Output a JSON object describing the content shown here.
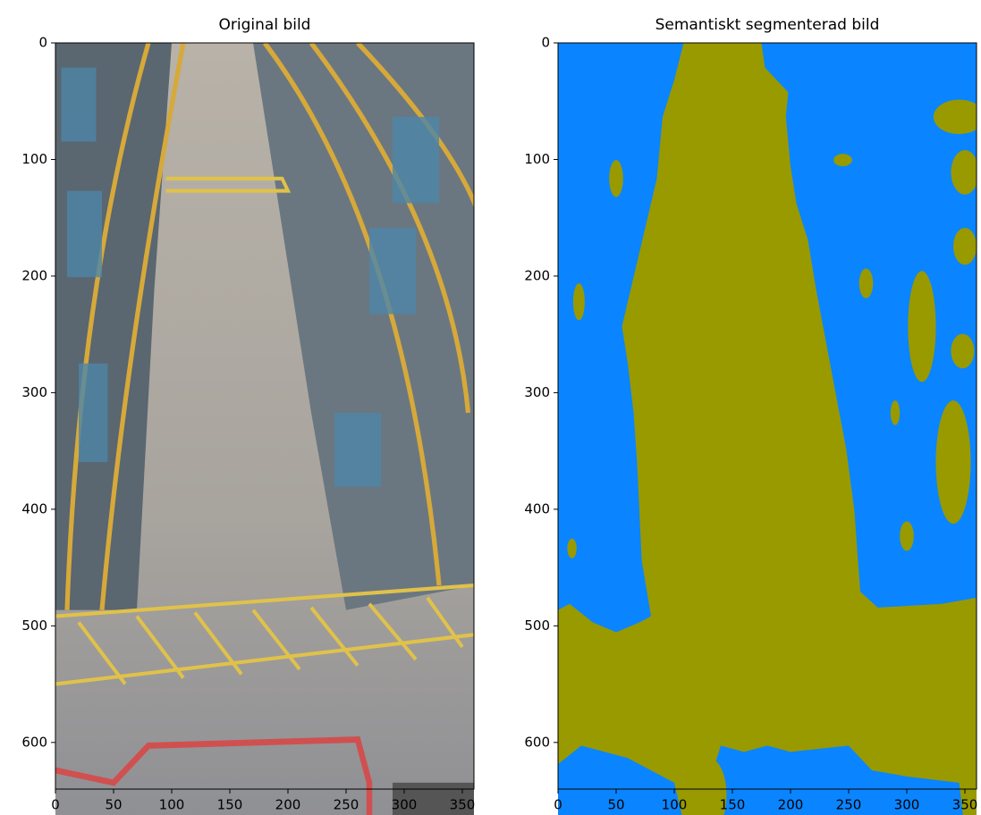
{
  "chart_data": [
    {
      "type": "image",
      "title": "Original bild",
      "xlim": [
        0,
        360
      ],
      "ylim": [
        640,
        0
      ],
      "xticks": [
        0,
        50,
        100,
        150,
        200,
        250,
        300,
        350
      ],
      "yticks": [
        0,
        100,
        200,
        300,
        400,
        500,
        600
      ]
    },
    {
      "type": "image",
      "title": "Semantiskt segmenterad bild",
      "xlim": [
        0,
        360
      ],
      "ylim": [
        640,
        0
      ],
      "xticks": [
        0,
        50,
        100,
        150,
        200,
        250,
        300,
        350
      ],
      "yticks": [
        0,
        100,
        200,
        300,
        400,
        500,
        600
      ]
    }
  ]
}
